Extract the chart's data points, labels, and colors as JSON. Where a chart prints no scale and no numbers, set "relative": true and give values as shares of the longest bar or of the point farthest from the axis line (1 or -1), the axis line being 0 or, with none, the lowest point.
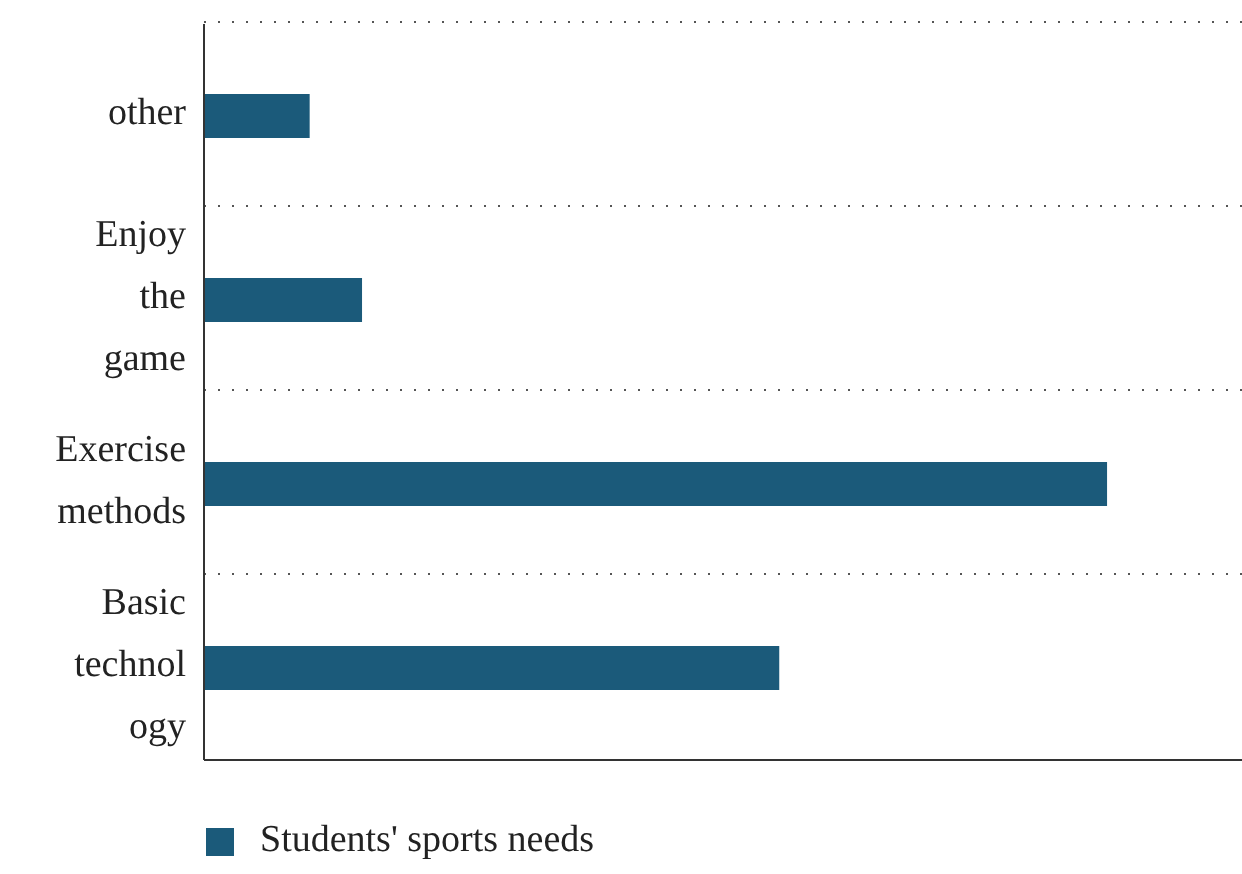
{
  "chart_data": {
    "type": "bar",
    "orientation": "horizontal",
    "relative": true,
    "categories": [
      "other",
      "Enjoy the game",
      "Exercise methods",
      "Basic technology"
    ],
    "series": [
      {
        "name": "Students' sports needs",
        "color": "#1b5a7a",
        "values": [
          0.117,
          0.175,
          1,
          0.637
        ]
      }
    ],
    "grid": "y",
    "legend": "bottom"
  }
}
